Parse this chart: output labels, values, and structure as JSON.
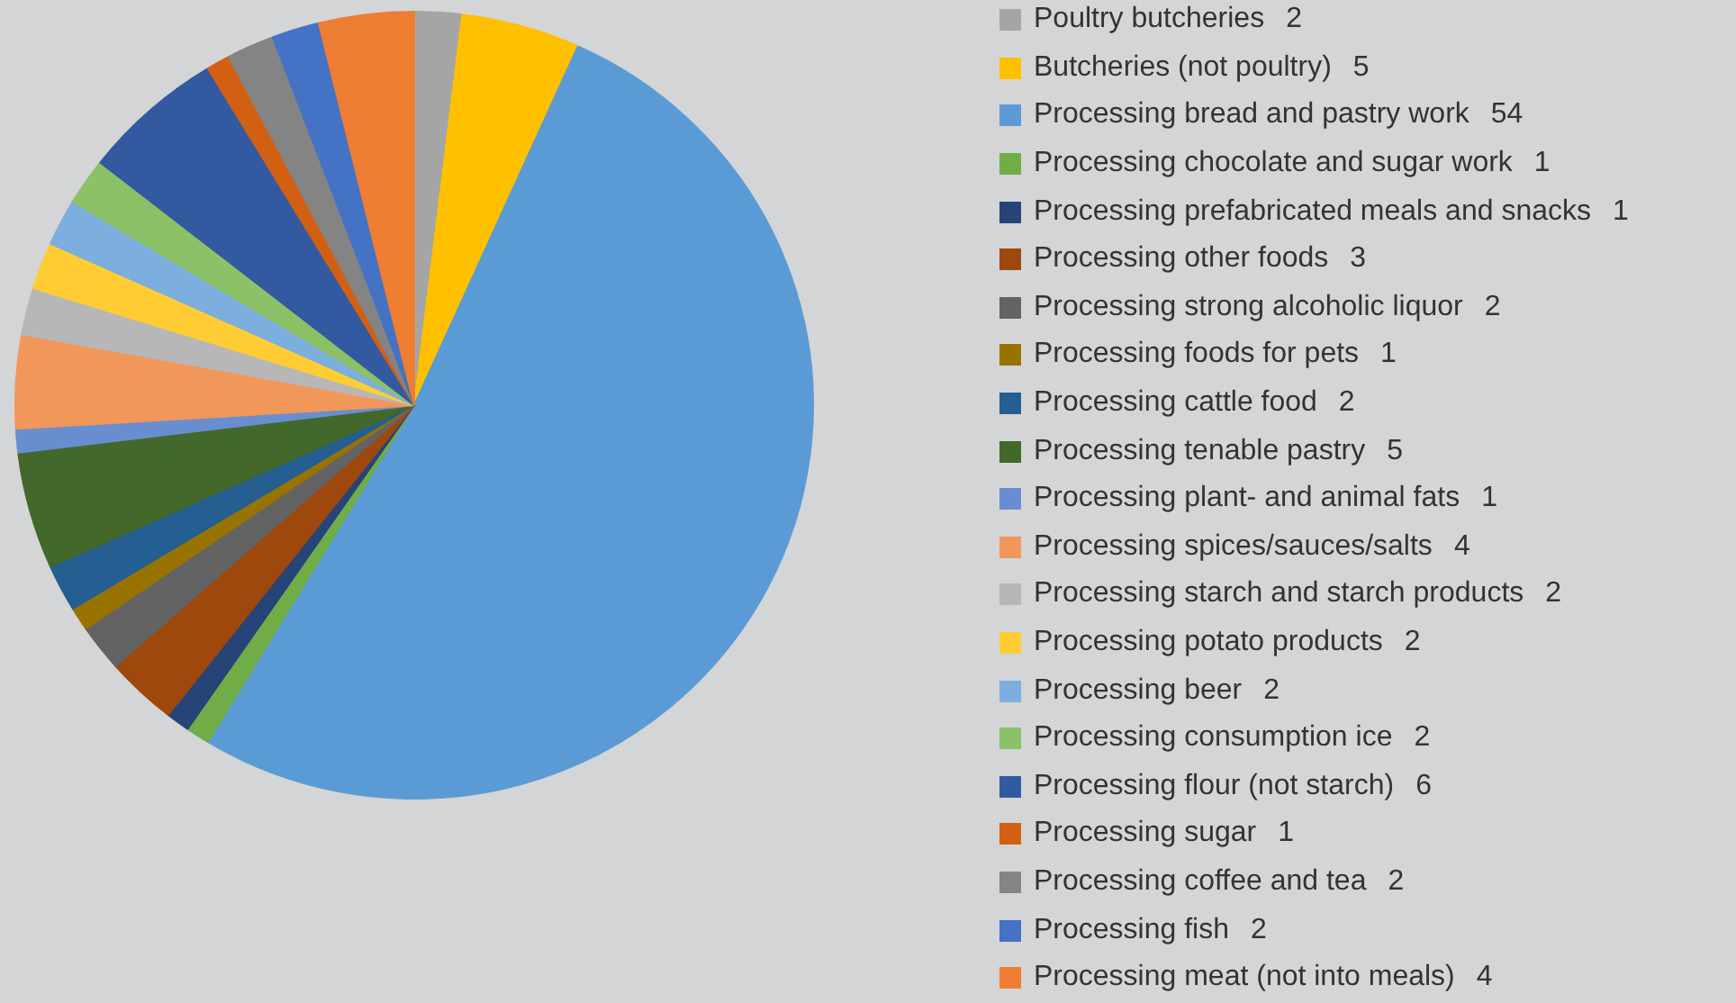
{
  "chart_data": {
    "type": "pie",
    "categories": [
      "Poultry butcheries",
      "Butcheries (not poultry)",
      "Processing bread and pastry work",
      "Processing chocolate and sugar work",
      "Processing prefabricated meals and snacks",
      "Processing other foods",
      "Processing strong alcoholic liquor",
      "Processing foods for pets",
      "Processing cattle food",
      "Processing tenable pastry",
      "Processing plant- and animal fats",
      "Processing spices/sauces/salts",
      "Processing starch and starch products",
      "Processing potato products",
      "Processing beer",
      "Processing consumption ice",
      "Processing flour (not starch)",
      "Processing sugar",
      "Processing coffee and tea",
      "Processing fish",
      "Processing meat (not into meals)"
    ],
    "values": [
      2,
      5,
      54,
      1,
      1,
      3,
      2,
      1,
      2,
      5,
      1,
      4,
      2,
      2,
      2,
      2,
      6,
      1,
      2,
      2,
      4
    ],
    "value_labels": [
      "2",
      "5",
      "54",
      "1",
      "1",
      "3",
      "2",
      "1",
      "2",
      "5",
      "1",
      "4",
      "2",
      "2",
      "2",
      "2",
      "6",
      "1",
      "2",
      "2",
      "4"
    ],
    "colors": [
      "#a5a5a5",
      "#ffc000",
      "#5b9bd5",
      "#70ad47",
      "#264478",
      "#9e480e",
      "#636363",
      "#997300",
      "#255e91",
      "#43682b",
      "#698ed0",
      "#f1975a",
      "#b7b7b7",
      "#ffcd33",
      "#7cafdd",
      "#8cc168",
      "#335aa1",
      "#d26012",
      "#848484",
      "#4472c4",
      "#ed7d31"
    ],
    "legend": "right"
  }
}
